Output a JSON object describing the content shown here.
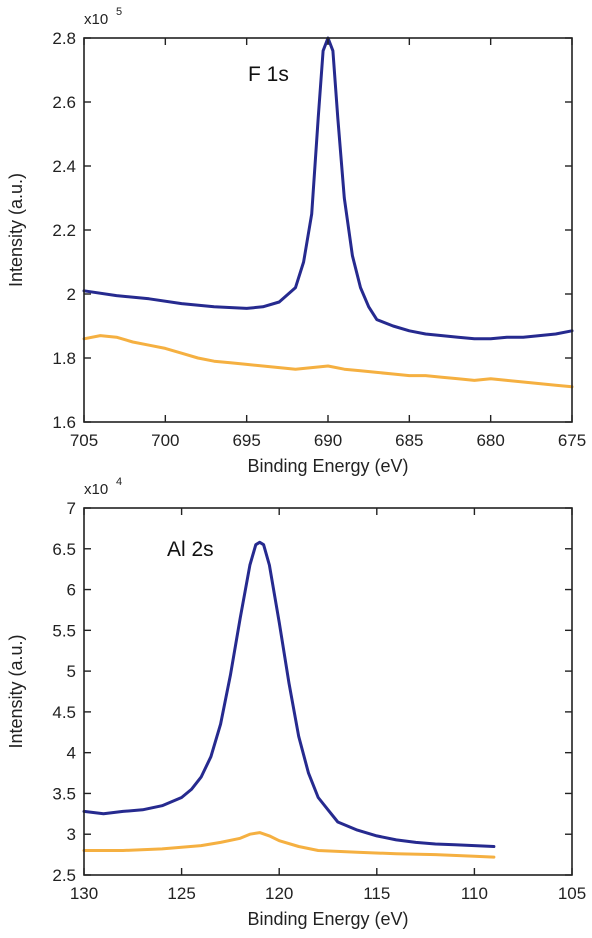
{
  "chart_data": [
    {
      "type": "line",
      "annotation": "F 1s",
      "xlabel": "Binding Energy (eV)",
      "ylabel": "Intensity (a.u.)",
      "multiplier": "x10",
      "exponent": "5",
      "xlim": [
        705,
        675
      ],
      "ylim": [
        1.6,
        2.8
      ],
      "xticks": [
        705,
        700,
        695,
        690,
        685,
        680,
        675
      ],
      "yticks": [
        1.6,
        1.8,
        2,
        2.2,
        2.4,
        2.6,
        2.8
      ],
      "series": [
        {
          "color": "#262a8f",
          "x": [
            705,
            703,
            701,
            699,
            697,
            695,
            694,
            693,
            692,
            691.5,
            691,
            690.6,
            690.3,
            690,
            689.7,
            689.4,
            689,
            688.5,
            688,
            687.5,
            687,
            686,
            685,
            684,
            683,
            682,
            681,
            680,
            679,
            678,
            677,
            676,
            675
          ],
          "y": [
            2.01,
            1.995,
            1.985,
            1.97,
            1.96,
            1.955,
            1.96,
            1.975,
            2.02,
            2.1,
            2.25,
            2.55,
            2.76,
            2.8,
            2.76,
            2.55,
            2.3,
            2.12,
            2.02,
            1.96,
            1.92,
            1.9,
            1.885,
            1.875,
            1.87,
            1.865,
            1.86,
            1.86,
            1.865,
            1.865,
            1.87,
            1.875,
            1.885
          ]
        },
        {
          "color": "#f5b041",
          "x": [
            705,
            704,
            703,
            702,
            701,
            700,
            699,
            698,
            697,
            696,
            695,
            694,
            693,
            692,
            691,
            690,
            689,
            688,
            687,
            686,
            685,
            684,
            683,
            682,
            681,
            680,
            679,
            678,
            677,
            676,
            675
          ],
          "y": [
            1.86,
            1.87,
            1.865,
            1.85,
            1.84,
            1.83,
            1.815,
            1.8,
            1.79,
            1.785,
            1.78,
            1.775,
            1.77,
            1.765,
            1.77,
            1.775,
            1.765,
            1.76,
            1.755,
            1.75,
            1.745,
            1.745,
            1.74,
            1.735,
            1.73,
            1.735,
            1.73,
            1.725,
            1.72,
            1.715,
            1.71
          ]
        }
      ]
    },
    {
      "type": "line",
      "annotation": "Al 2s",
      "xlabel": "Binding Energy (eV)",
      "ylabel": "Intensity (a.u.)",
      "multiplier": "x10",
      "exponent": "4",
      "xlim": [
        130,
        105
      ],
      "ylim": [
        2.5,
        7
      ],
      "xticks": [
        130,
        125,
        120,
        115,
        110,
        105
      ],
      "yticks": [
        2.5,
        3,
        3.5,
        4,
        4.5,
        5,
        5.5,
        6,
        6.5,
        7
      ],
      "series": [
        {
          "color": "#262a8f",
          "x": [
            130,
            129,
            128,
            127,
            126,
            125,
            124.5,
            124,
            123.5,
            123,
            122.5,
            122,
            121.5,
            121.2,
            121,
            120.8,
            120.5,
            120,
            119.5,
            119,
            118.5,
            118,
            117.5,
            117,
            116,
            115,
            114,
            113,
            112,
            111,
            110,
            109
          ],
          "y": [
            3.28,
            3.25,
            3.28,
            3.3,
            3.35,
            3.45,
            3.55,
            3.7,
            3.95,
            4.35,
            4.95,
            5.65,
            6.3,
            6.55,
            6.58,
            6.55,
            6.3,
            5.6,
            4.85,
            4.2,
            3.75,
            3.45,
            3.3,
            3.15,
            3.05,
            2.98,
            2.93,
            2.9,
            2.88,
            2.87,
            2.86,
            2.85
          ]
        },
        {
          "color": "#f5b041",
          "x": [
            130,
            128,
            126,
            124,
            123,
            122,
            121.5,
            121,
            120.5,
            120,
            119,
            118,
            116,
            114,
            112,
            110,
            109
          ],
          "y": [
            2.8,
            2.8,
            2.82,
            2.86,
            2.9,
            2.95,
            3.0,
            3.02,
            2.98,
            2.92,
            2.85,
            2.8,
            2.78,
            2.76,
            2.75,
            2.73,
            2.72
          ]
        }
      ]
    }
  ]
}
